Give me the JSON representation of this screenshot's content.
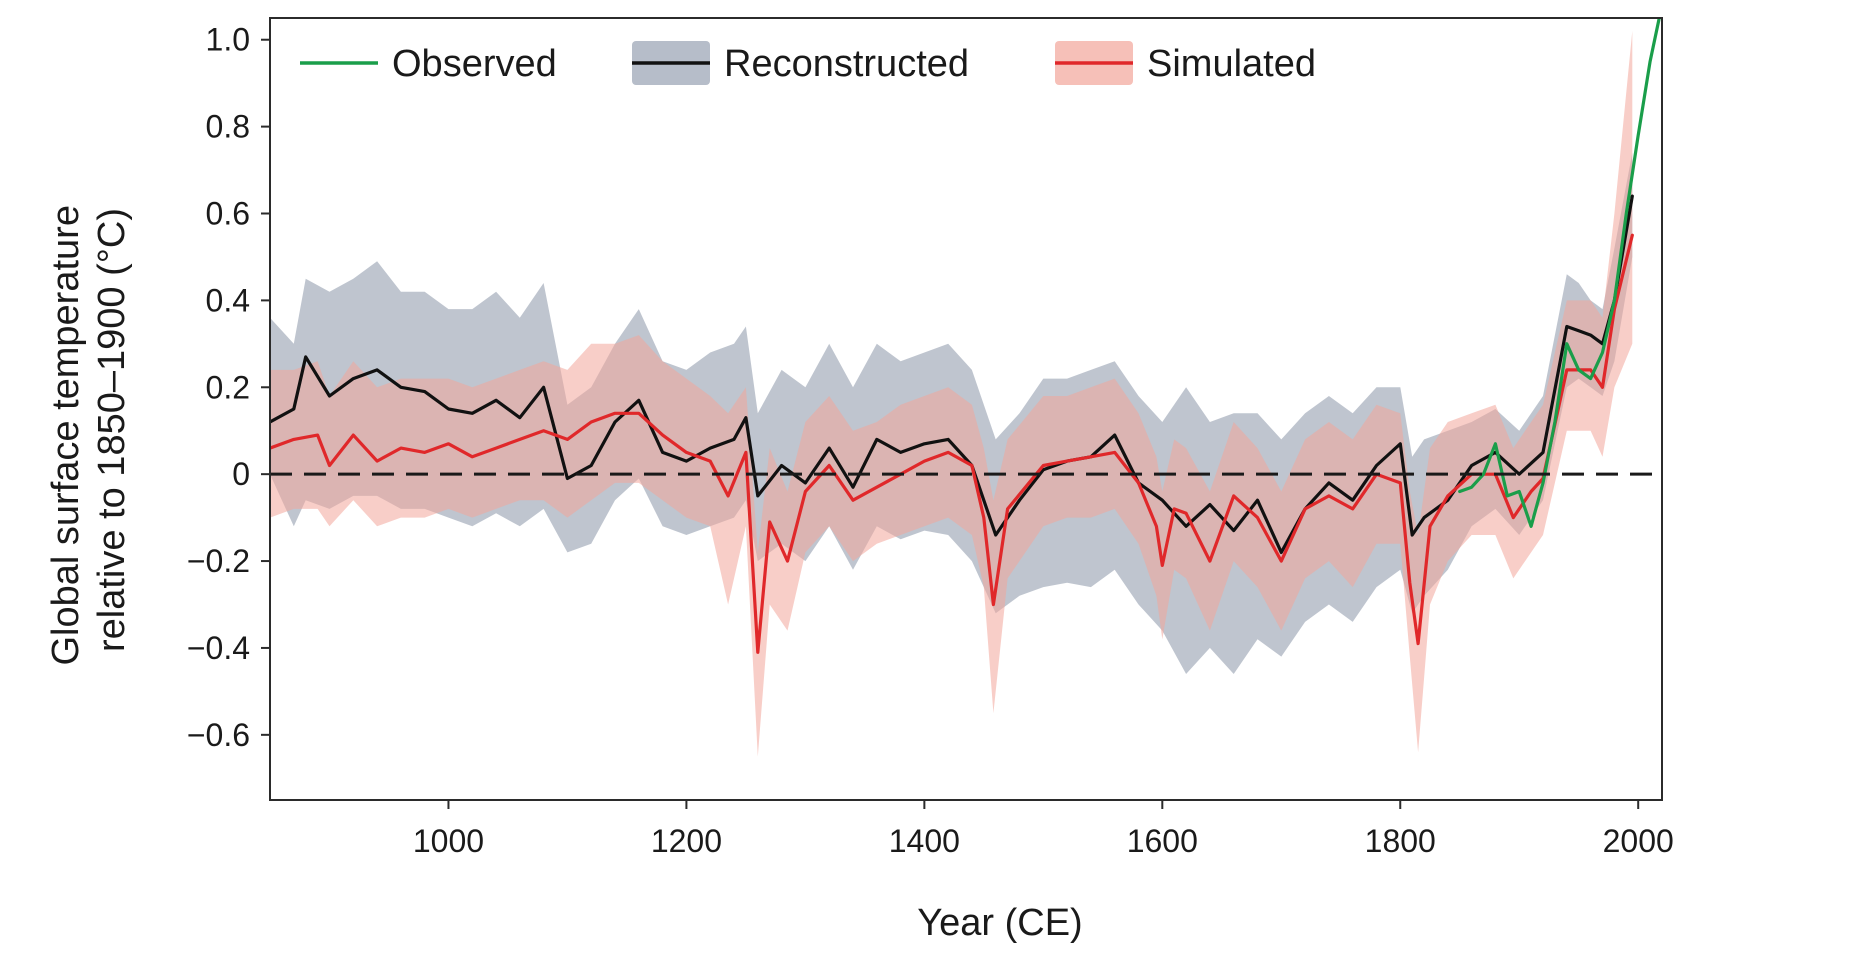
{
  "chart_data": {
    "type": "line",
    "title": "",
    "xlabel": "Year (CE)",
    "ylabel_lines": [
      "Global surface temperature",
      "relative to 1850–1900 (°C)"
    ],
    "xlim": [
      850,
      2020
    ],
    "ylim": [
      -0.75,
      1.05
    ],
    "xticks": [
      1000,
      1200,
      1400,
      1600,
      1800,
      2000
    ],
    "yticks": [
      1.0,
      0.8,
      0.6,
      0.4,
      0.2,
      0,
      -0.2,
      -0.4,
      -0.6
    ],
    "ytick_labels": [
      "1.0",
      "0.8",
      "0.6",
      "0.4",
      "0.2",
      "0",
      "−0.2",
      "−0.4",
      "−0.6"
    ],
    "reference_line": {
      "y": 0,
      "style": "dashed"
    },
    "grid": false,
    "legend": {
      "placement": "top-left, horizontal",
      "entries": [
        {
          "label": "Observed",
          "kind": "line",
          "color": "#1a9e4a"
        },
        {
          "label": "Reconstructed",
          "kind": "line+band",
          "color": "#111111",
          "band_color": "#a9b2bf"
        },
        {
          "label": "Simulated",
          "kind": "line+band",
          "color": "#e0282a",
          "band_color": "#f2a59a"
        }
      ]
    },
    "series": [
      {
        "name": "Reconstructed",
        "color": "#111111",
        "band_color": "#a9b2bf",
        "x": [
          850,
          870,
          880,
          900,
          920,
          940,
          960,
          980,
          1000,
          1020,
          1040,
          1060,
          1080,
          1100,
          1120,
          1140,
          1160,
          1180,
          1200,
          1220,
          1240,
          1250,
          1260,
          1280,
          1300,
          1320,
          1340,
          1360,
          1380,
          1400,
          1420,
          1440,
          1460,
          1480,
          1500,
          1520,
          1540,
          1560,
          1580,
          1600,
          1620,
          1640,
          1660,
          1680,
          1700,
          1720,
          1740,
          1760,
          1780,
          1800,
          1810,
          1820,
          1840,
          1860,
          1880,
          1900,
          1920,
          1940,
          1950,
          1960,
          1970,
          1980,
          1995
        ],
        "y": [
          0.12,
          0.15,
          0.27,
          0.18,
          0.22,
          0.24,
          0.2,
          0.19,
          0.15,
          0.14,
          0.17,
          0.13,
          0.2,
          -0.01,
          0.02,
          0.12,
          0.17,
          0.05,
          0.03,
          0.06,
          0.08,
          0.13,
          -0.05,
          0.02,
          -0.02,
          0.06,
          -0.03,
          0.08,
          0.05,
          0.07,
          0.08,
          0.02,
          -0.14,
          -0.06,
          0.01,
          0.03,
          0.04,
          0.09,
          -0.02,
          -0.06,
          -0.12,
          -0.07,
          -0.13,
          -0.06,
          -0.18,
          -0.08,
          -0.02,
          -0.06,
          0.02,
          0.07,
          -0.14,
          -0.1,
          -0.06,
          0.02,
          0.05,
          0.0,
          0.05,
          0.34,
          0.33,
          0.32,
          0.3,
          0.4,
          0.64
        ],
        "lower": [
          0.0,
          -0.12,
          -0.06,
          -0.08,
          -0.05,
          -0.05,
          -0.08,
          -0.08,
          -0.1,
          -0.12,
          -0.09,
          -0.12,
          -0.08,
          -0.18,
          -0.16,
          -0.06,
          -0.01,
          -0.12,
          -0.14,
          -0.12,
          -0.1,
          -0.06,
          -0.2,
          -0.16,
          -0.2,
          -0.12,
          -0.22,
          -0.12,
          -0.15,
          -0.13,
          -0.14,
          -0.2,
          -0.32,
          -0.28,
          -0.26,
          -0.25,
          -0.26,
          -0.22,
          -0.3,
          -0.36,
          -0.46,
          -0.4,
          -0.46,
          -0.38,
          -0.42,
          -0.34,
          -0.3,
          -0.34,
          -0.26,
          -0.22,
          -0.32,
          -0.28,
          -0.22,
          -0.12,
          -0.08,
          -0.14,
          -0.06,
          0.2,
          0.22,
          0.2,
          0.18,
          0.26,
          0.5
        ],
        "upper": [
          0.36,
          0.3,
          0.45,
          0.42,
          0.45,
          0.49,
          0.42,
          0.42,
          0.38,
          0.38,
          0.42,
          0.36,
          0.44,
          0.16,
          0.2,
          0.3,
          0.38,
          0.26,
          0.24,
          0.28,
          0.3,
          0.34,
          0.14,
          0.24,
          0.2,
          0.3,
          0.2,
          0.3,
          0.26,
          0.28,
          0.3,
          0.24,
          0.08,
          0.14,
          0.22,
          0.22,
          0.24,
          0.26,
          0.18,
          0.12,
          0.2,
          0.12,
          0.14,
          0.14,
          0.08,
          0.14,
          0.18,
          0.14,
          0.2,
          0.2,
          0.04,
          0.08,
          0.1,
          0.12,
          0.15,
          0.1,
          0.18,
          0.46,
          0.44,
          0.4,
          0.38,
          0.52,
          0.74
        ]
      },
      {
        "name": "Simulated",
        "color": "#e0282a",
        "band_color": "#f2a59a",
        "x": [
          850,
          870,
          890,
          900,
          920,
          940,
          960,
          980,
          1000,
          1020,
          1040,
          1060,
          1080,
          1100,
          1120,
          1140,
          1160,
          1180,
          1200,
          1220,
          1235,
          1250,
          1260,
          1270,
          1285,
          1300,
          1320,
          1340,
          1360,
          1380,
          1400,
          1420,
          1440,
          1450,
          1458,
          1470,
          1500,
          1520,
          1540,
          1560,
          1580,
          1595,
          1600,
          1610,
          1620,
          1640,
          1660,
          1680,
          1700,
          1720,
          1740,
          1760,
          1780,
          1800,
          1808,
          1815,
          1825,
          1840,
          1860,
          1880,
          1895,
          1910,
          1920,
          1940,
          1960,
          1970,
          1980,
          1995
        ],
        "y": [
          0.06,
          0.08,
          0.09,
          0.02,
          0.09,
          0.03,
          0.06,
          0.05,
          0.07,
          0.04,
          0.06,
          0.08,
          0.1,
          0.08,
          0.12,
          0.14,
          0.14,
          0.09,
          0.05,
          0.03,
          -0.05,
          0.05,
          -0.41,
          -0.11,
          -0.2,
          -0.04,
          0.02,
          -0.06,
          -0.03,
          0.0,
          0.03,
          0.05,
          0.02,
          -0.1,
          -0.3,
          -0.08,
          0.02,
          0.03,
          0.04,
          0.05,
          -0.02,
          -0.12,
          -0.21,
          -0.08,
          -0.09,
          -0.2,
          -0.05,
          -0.1,
          -0.2,
          -0.08,
          -0.05,
          -0.08,
          0.0,
          -0.02,
          -0.25,
          -0.39,
          -0.12,
          -0.05,
          0.0,
          0.0,
          -0.1,
          -0.04,
          -0.01,
          0.24,
          0.24,
          0.2,
          0.38,
          0.55
        ],
        "lower": [
          -0.1,
          -0.08,
          -0.08,
          -0.12,
          -0.06,
          -0.12,
          -0.1,
          -0.1,
          -0.08,
          -0.1,
          -0.08,
          -0.06,
          -0.06,
          -0.1,
          -0.06,
          -0.02,
          -0.02,
          -0.06,
          -0.1,
          -0.12,
          -0.3,
          -0.12,
          -0.65,
          -0.3,
          -0.36,
          -0.18,
          -0.12,
          -0.2,
          -0.16,
          -0.14,
          -0.12,
          -0.1,
          -0.14,
          -0.26,
          -0.55,
          -0.24,
          -0.12,
          -0.1,
          -0.1,
          -0.08,
          -0.16,
          -0.28,
          -0.38,
          -0.22,
          -0.24,
          -0.36,
          -0.2,
          -0.26,
          -0.36,
          -0.24,
          -0.2,
          -0.26,
          -0.16,
          -0.16,
          -0.42,
          -0.64,
          -0.3,
          -0.2,
          -0.14,
          -0.14,
          -0.24,
          -0.18,
          -0.14,
          0.1,
          0.1,
          0.04,
          0.2,
          0.3
        ],
        "upper": [
          0.24,
          0.24,
          0.26,
          0.18,
          0.26,
          0.2,
          0.22,
          0.22,
          0.22,
          0.2,
          0.22,
          0.24,
          0.26,
          0.24,
          0.3,
          0.3,
          0.32,
          0.26,
          0.22,
          0.18,
          0.14,
          0.2,
          -0.18,
          0.06,
          -0.04,
          0.12,
          0.18,
          0.1,
          0.12,
          0.16,
          0.18,
          0.2,
          0.16,
          0.06,
          -0.06,
          0.08,
          0.18,
          0.18,
          0.2,
          0.22,
          0.14,
          0.04,
          -0.04,
          0.08,
          0.06,
          -0.04,
          0.12,
          0.06,
          -0.04,
          0.08,
          0.12,
          0.08,
          0.16,
          0.14,
          -0.04,
          -0.14,
          0.06,
          0.12,
          0.14,
          0.16,
          0.06,
          0.12,
          0.16,
          0.4,
          0.4,
          0.36,
          0.6,
          1.02
        ]
      },
      {
        "name": "Observed",
        "color": "#1a9e4a",
        "x": [
          1850,
          1860,
          1870,
          1880,
          1890,
          1900,
          1910,
          1920,
          1930,
          1940,
          1950,
          1960,
          1970,
          1980,
          1990,
          2000,
          2010,
          2020
        ],
        "y": [
          -0.04,
          -0.03,
          0.0,
          0.07,
          -0.05,
          -0.04,
          -0.12,
          -0.02,
          0.12,
          0.3,
          0.24,
          0.22,
          0.28,
          0.4,
          0.6,
          0.78,
          0.95,
          1.08
        ]
      }
    ]
  }
}
